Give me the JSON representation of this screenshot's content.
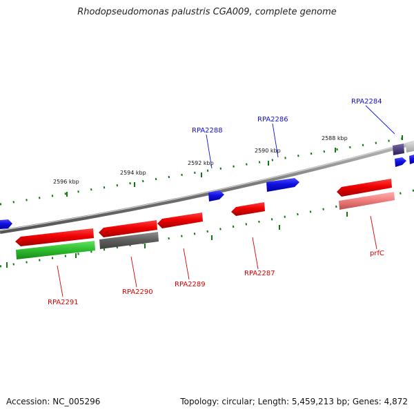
{
  "title": "Rhodopseudomonas palustris CGA009, complete genome",
  "footer": {
    "accession": "Accession: NC_005296",
    "summary": "Topology: circular; Length: 5,459,213 bp; Genes: 4,872"
  },
  "scale_labels": [
    {
      "id": "kbp-2596",
      "text": "2596 kbp"
    },
    {
      "id": "kbp-2594",
      "text": "2594 kbp"
    },
    {
      "id": "kbp-2592",
      "text": "2592 kbp"
    },
    {
      "id": "kbp-2590",
      "text": "2590 kbp"
    },
    {
      "id": "kbp-2588",
      "text": "2588 kbp"
    }
  ],
  "gene_labels": [
    {
      "id": "RPA2284",
      "text": "RPA2284",
      "strand": "forward"
    },
    {
      "id": "RPA2286",
      "text": "RPA2286",
      "strand": "forward"
    },
    {
      "id": "RPA2288",
      "text": "RPA2288",
      "strand": "forward"
    },
    {
      "id": "RPA2287",
      "text": "RPA2287",
      "strand": "reverse"
    },
    {
      "id": "RPA2289",
      "text": "RPA2289",
      "strand": "reverse"
    },
    {
      "id": "RPA2290",
      "text": "RPA2290",
      "strand": "reverse"
    },
    {
      "id": "RPA2291",
      "text": "RPA2291",
      "strand": "reverse"
    },
    {
      "id": "prfC",
      "text": "prfC",
      "strand": "reverse"
    }
  ],
  "colors": {
    "forward_gene": "#1010e0",
    "reverse_gene": "#e01010",
    "reverse_gene_light": "#f08080",
    "green_feature": "#30c030",
    "grey_feature": "#606060",
    "backbone": "#888888",
    "tick": "#117711"
  }
}
